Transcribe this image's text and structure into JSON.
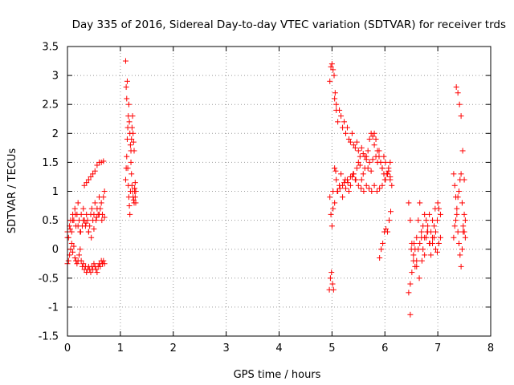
{
  "chart_data": {
    "type": "scatter",
    "title": "Day 335 of 2016, Sidereal Day-to-day VTEC variation (SDTVAR) for receiver trds",
    "xlabel": "GPS time / hours",
    "ylabel": "SDTVAR / TECUs",
    "xlim": [
      0,
      8
    ],
    "ylim": [
      -1.5,
      3.5
    ],
    "grid": true,
    "marker": "+",
    "marker_color": "#ff0000",
    "x_ticks": [
      "0",
      "1",
      "2",
      "3",
      "4",
      "5",
      "6",
      "7",
      "8"
    ],
    "y_ticks": [
      "3.5",
      "3",
      "2.5",
      "2",
      "1.5",
      "1",
      "0.5",
      "0",
      "-0.5",
      "-1",
      "-1.5"
    ],
    "series": [
      {
        "name": "trds",
        "x": [
          0.0,
          0.02,
          0.04,
          0.06,
          0.08,
          0.1,
          0.12,
          0.14,
          0.16,
          0.18,
          0.2,
          0.22,
          0.24,
          0.26,
          0.28,
          0.3,
          0.32,
          0.34,
          0.36,
          0.38,
          0.4,
          0.42,
          0.44,
          0.46,
          0.48,
          0.5,
          0.52,
          0.54,
          0.56,
          0.58,
          0.6,
          0.62,
          0.64,
          0.66,
          0.68,
          0.7,
          0.0,
          0.02,
          0.04,
          0.06,
          0.08,
          0.1,
          0.12,
          0.14,
          0.16,
          0.18,
          0.2,
          0.22,
          0.24,
          0.26,
          0.28,
          0.3,
          0.32,
          0.34,
          0.36,
          0.38,
          0.4,
          0.42,
          0.44,
          0.46,
          0.48,
          0.5,
          0.52,
          0.54,
          0.56,
          0.58,
          0.6,
          0.62,
          0.64,
          0.66,
          0.68,
          0.7,
          0.0,
          0.05,
          0.1,
          0.15,
          0.2,
          0.25,
          0.3,
          0.35,
          0.4,
          0.45,
          0.5,
          0.55,
          0.6,
          0.65,
          0.7,
          0.32,
          0.36,
          0.4,
          0.44,
          0.48,
          0.52,
          0.56,
          0.6,
          0.64,
          0.68,
          1.1,
          1.11,
          1.12,
          1.13,
          1.14,
          1.15,
          1.16,
          1.17,
          1.18,
          1.19,
          1.2,
          1.21,
          1.22,
          1.23,
          1.24,
          1.25,
          1.26,
          1.27,
          1.28,
          1.29,
          1.1,
          1.11,
          1.12,
          1.13,
          1.14,
          1.15,
          1.16,
          1.17,
          1.18,
          1.19,
          1.2,
          1.21,
          1.22,
          1.23,
          1.24,
          1.25,
          1.26,
          1.27,
          1.28,
          1.29,
          4.95,
          4.97,
          4.99,
          5.01,
          5.03,
          5.05,
          5.07,
          4.96,
          4.98,
          5.0,
          5.02,
          5.04,
          5.06,
          5.08,
          4.96,
          4.98,
          5.0,
          5.02,
          5.02,
          5.05,
          5.08,
          5.11,
          5.14,
          5.17,
          5.2,
          5.23,
          5.26,
          5.29,
          5.32,
          5.35,
          5.38,
          5.41,
          5.44,
          5.47,
          5.5,
          5.53,
          5.56,
          5.59,
          5.62,
          5.65,
          5.68,
          5.71,
          5.74,
          5.77,
          5.8,
          5.83,
          5.86,
          5.89,
          5.92,
          5.95,
          5.98,
          6.01,
          6.04,
          6.07,
          6.1,
          6.13,
          5.05,
          5.08,
          5.11,
          5.14,
          5.17,
          5.2,
          5.23,
          5.26,
          5.29,
          5.32,
          5.35,
          5.38,
          5.41,
          5.44,
          5.47,
          5.5,
          5.53,
          5.56,
          5.59,
          5.62,
          5.65,
          5.68,
          5.71,
          5.74,
          5.77,
          5.8,
          5.83,
          5.86,
          5.89,
          5.92,
          5.95,
          5.98,
          6.01,
          6.04,
          6.07,
          6.1,
          5.1,
          5.15,
          5.2,
          5.25,
          5.3,
          5.35,
          5.4,
          5.45,
          5.5,
          5.55,
          5.6,
          5.65,
          5.7,
          5.75,
          5.8,
          5.85,
          5.9,
          5.95,
          6.0,
          6.05,
          6.1,
          5.9,
          5.93,
          5.96,
          5.99,
          6.02,
          6.05,
          6.08,
          6.11,
          6.45,
          6.48,
          6.51,
          6.54,
          6.57,
          6.6,
          6.63,
          6.66,
          6.69,
          6.72,
          6.75,
          6.78,
          6.81,
          6.84,
          6.87,
          6.9,
          6.93,
          6.96,
          6.99,
          7.02,
          7.05,
          6.45,
          6.48,
          6.51,
          6.54,
          6.57,
          6.6,
          6.63,
          6.66,
          6.69,
          6.72,
          6.75,
          6.78,
          6.81,
          6.84,
          6.87,
          6.9,
          6.93,
          6.96,
          6.99,
          7.02,
          7.05,
          6.5,
          6.55,
          6.6,
          6.65,
          6.7,
          6.75,
          6.8,
          6.85,
          6.9,
          6.95,
          7.0,
          6.48,
          7.3,
          7.32,
          7.34,
          7.36,
          7.38,
          7.4,
          7.42,
          7.44,
          7.46,
          7.48,
          7.5,
          7.52,
          7.3,
          7.32,
          7.34,
          7.36,
          7.38,
          7.4,
          7.42,
          7.44,
          7.46,
          7.48,
          7.5,
          7.52,
          7.35,
          7.38,
          7.41,
          7.44,
          7.47,
          7.5
        ],
        "y": [
          0.3,
          0.2,
          0.4,
          0.5,
          0.3,
          0.6,
          0.5,
          0.7,
          0.4,
          0.6,
          0.8,
          0.5,
          0.3,
          0.6,
          0.4,
          0.7,
          0.5,
          0.4,
          0.6,
          0.5,
          0.3,
          0.4,
          0.6,
          0.7,
          0.5,
          0.6,
          0.8,
          0.5,
          0.7,
          0.6,
          0.9,
          0.7,
          0.8,
          0.6,
          0.9,
          1.0,
          -0.25,
          -0.2,
          -0.1,
          0.0,
          0.1,
          -0.05,
          0.05,
          -0.15,
          -0.2,
          -0.25,
          -0.2,
          -0.1,
          0.0,
          -0.2,
          -0.3,
          -0.25,
          -0.35,
          -0.3,
          -0.4,
          -0.35,
          -0.3,
          -0.35,
          -0.4,
          -0.3,
          -0.35,
          -0.25,
          -0.3,
          -0.35,
          -0.4,
          -0.3,
          -0.25,
          -0.3,
          -0.2,
          -0.25,
          -0.2,
          -0.25,
          0.2,
          0.35,
          0.5,
          0.6,
          0.4,
          0.3,
          0.5,
          0.45,
          0.3,
          0.2,
          0.35,
          0.55,
          0.6,
          0.5,
          0.55,
          1.1,
          1.15,
          1.2,
          1.25,
          1.3,
          1.35,
          1.45,
          1.5,
          1.5,
          1.52,
          1.2,
          1.4,
          1.6,
          1.9,
          2.1,
          2.3,
          2.5,
          2.2,
          2.0,
          1.8,
          1.7,
          1.9,
          2.1,
          2.3,
          2.0,
          1.85,
          1.7,
          1.0,
          0.9,
          0.8,
          3.25,
          2.8,
          2.6,
          2.9,
          1.4,
          1.1,
          0.9,
          0.75,
          0.6,
          1.0,
          1.5,
          1.3,
          1.1,
          1.0,
          0.9,
          0.85,
          0.8,
          1.05,
          1.15,
          1.0,
          -0.7,
          -0.5,
          -0.4,
          -0.6,
          -0.7,
          1.4,
          1.35,
          2.9,
          3.15,
          3.2,
          3.1,
          3.0,
          2.7,
          2.5,
          0.9,
          0.6,
          0.4,
          0.7,
          1.0,
          0.8,
          1.2,
          1.0,
          1.1,
          1.3,
          0.9,
          1.15,
          1.05,
          1.2,
          1.0,
          1.1,
          1.25,
          1.3,
          1.2,
          1.4,
          1.5,
          1.45,
          1.2,
          1.3,
          1.4,
          1.6,
          1.4,
          1.5,
          1.35,
          1.55,
          1.8,
          1.6,
          1.5,
          1.7,
          1.5,
          1.4,
          1.6,
          1.5,
          1.3,
          1.35,
          1.2,
          1.1,
          2.6,
          2.4,
          2.2,
          2.4,
          2.3,
          2.1,
          2.2,
          2.0,
          2.1,
          1.9,
          1.85,
          2.0,
          1.8,
          1.75,
          1.85,
          1.7,
          1.6,
          1.75,
          1.65,
          1.6,
          1.55,
          1.7,
          1.9,
          2.0,
          1.95,
          2.0,
          1.9,
          1.7,
          1.6,
          1.5,
          1.4,
          1.3,
          1.2,
          1.3,
          1.4,
          1.5,
          1.0,
          1.05,
          1.1,
          1.2,
          1.15,
          1.25,
          1.3,
          1.2,
          1.1,
          1.05,
          1.0,
          1.1,
          1.05,
          1.0,
          1.1,
          1.0,
          1.05,
          1.1,
          1.2,
          1.3,
          1.25,
          -0.15,
          0.0,
          0.1,
          0.3,
          0.35,
          0.3,
          0.5,
          0.65,
          -0.75,
          -0.6,
          -0.4,
          -0.1,
          0.0,
          0.2,
          0.5,
          0.8,
          0.3,
          0.0,
          -0.1,
          0.2,
          0.4,
          0.6,
          0.3,
          0.1,
          0.2,
          0.3,
          0.5,
          0.7,
          0.6,
          0.8,
          0.5,
          0.1,
          -0.2,
          -0.3,
          -0.2,
          0.0,
          0.1,
          0.2,
          0.4,
          0.6,
          0.5,
          0.3,
          0.1,
          -0.1,
          0.2,
          0.4,
          0.0,
          -0.05,
          0.1,
          0.2,
          0.0,
          0.1,
          -0.3,
          -0.5,
          -0.2,
          0.2,
          0.3,
          0.1,
          0.5,
          0.7,
          0.8,
          -1.13,
          1.3,
          1.1,
          0.9,
          0.6,
          0.3,
          0.1,
          -0.1,
          -0.3,
          0.0,
          0.3,
          0.6,
          0.5,
          0.2,
          0.4,
          0.5,
          0.7,
          0.9,
          1.0,
          1.2,
          1.3,
          0.8,
          0.4,
          0.3,
          0.2,
          2.8,
          2.7,
          2.5,
          2.3,
          1.7,
          1.2
        ]
      }
    ]
  }
}
